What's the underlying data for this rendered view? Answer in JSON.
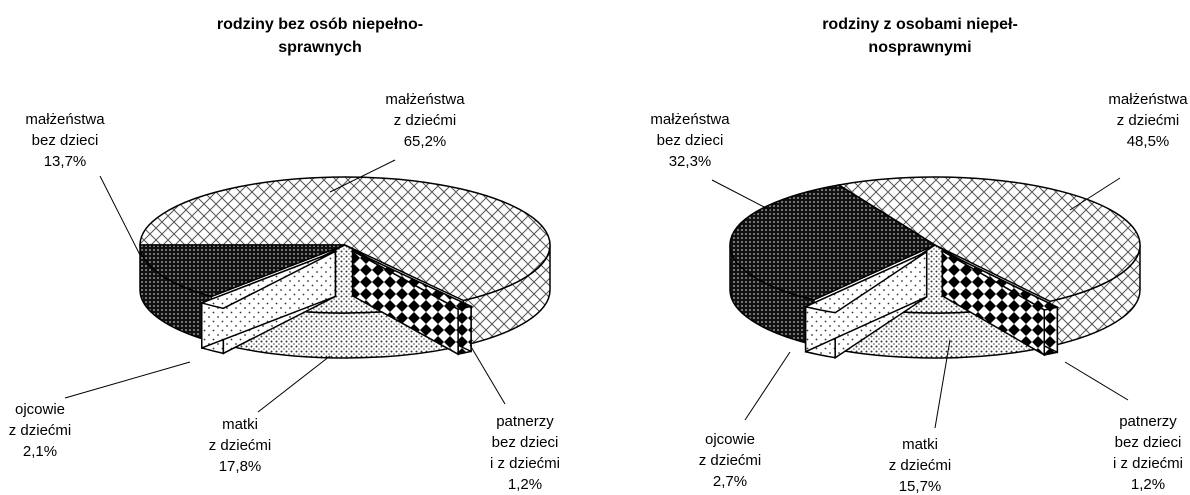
{
  "chart_data": [
    {
      "type": "pie",
      "title": [
        "rodziny bez osób niepełno-",
        "sprawnych"
      ],
      "categories": [
        [
          "małżeństwa",
          "z dziećmi"
        ],
        [
          "patnerzy",
          "bez dzieci",
          "i z dziećmi"
        ],
        [
          "matki",
          "z dziećmi"
        ],
        [
          "ojcowie",
          "z dziećmi"
        ],
        [
          "małżeństwa",
          "bez dzieci"
        ]
      ],
      "values": [
        65.2,
        1.2,
        17.8,
        2.1,
        13.7
      ],
      "value_labels": [
        "65,2%",
        "1,2%",
        "17,8%",
        "2,1%",
        "13,7%"
      ],
      "patterns": [
        "crosshatch",
        "checker",
        "fine-dots",
        "sparse-dots",
        "dense-dots"
      ]
    },
    {
      "type": "pie",
      "title": [
        "rodziny z osobami niepeł-",
        "nosprawnymi"
      ],
      "categories": [
        [
          "małżeństwa",
          "z dziećmi"
        ],
        [
          "patnerzy",
          "bez dzieci",
          "i z dziećmi"
        ],
        [
          "matki",
          "z dziećmi"
        ],
        [
          "ojcowie",
          "z dziećmi"
        ],
        [
          "małżeństwa",
          "bez dzieci"
        ]
      ],
      "values": [
        48.5,
        1.2,
        15.7,
        2.7,
        32.3
      ],
      "value_labels": [
        "48,5%",
        "1,2%",
        "15,7%",
        "2,7%",
        "32,3%"
      ],
      "patterns": [
        "crosshatch",
        "checker",
        "fine-dots",
        "sparse-dots",
        "dense-dots"
      ]
    }
  ]
}
